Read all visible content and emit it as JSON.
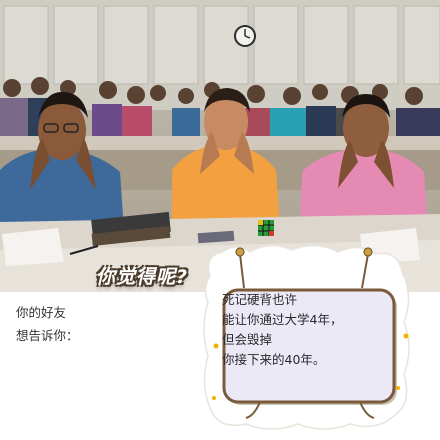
{
  "question": "你觉得呢?",
  "side_text": [
    "你的好友",
    "想告诉你："
  ],
  "note_lines": [
    "死记硬背也许",
    "能让你通过大学4年，",
    "但会毁掉",
    "你接下来的40年。"
  ],
  "colors": {
    "board_fill": "#ece9f7",
    "board_border": "#7a5a3a",
    "caption_outline": "#4a3a2a"
  }
}
